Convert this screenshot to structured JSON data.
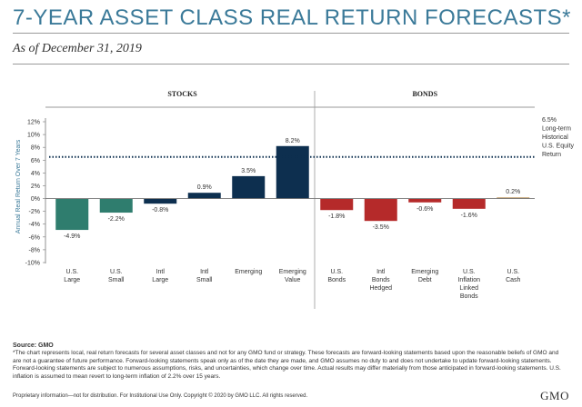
{
  "title": "7-YEAR ASSET CLASS REAL RETURN FORECASTS*",
  "subtitle": "As of December 31, 2019",
  "chart_data": {
    "type": "bar",
    "ylabel": "Annual Real Return Over 7 Years",
    "ylim": [
      -10,
      12
    ],
    "yticks": [
      "12%",
      "10%",
      "8%",
      "6%",
      "4%",
      "2%",
      "0%",
      "-2%",
      "-4%",
      "-6%",
      "-8%",
      "-10%"
    ],
    "grid": false,
    "groups": [
      {
        "label": "STOCKS",
        "color": "#0d2f4f",
        "categories": [
          {
            "label": "U.S.\nLarge",
            "value": -4.9,
            "value_label": "-4.9%",
            "color": "#2f7d6e"
          },
          {
            "label": "U.S.\nSmall",
            "value": -2.2,
            "value_label": "-2.2%",
            "color": "#2f7d6e"
          },
          {
            "label": "Intl\nLarge",
            "value": -0.8,
            "value_label": "-0.8%",
            "color": "#0d2f4f"
          },
          {
            "label": "Intl\nSmall",
            "value": 0.9,
            "value_label": "0.9%",
            "color": "#0d2f4f"
          },
          {
            "label": "Emerging",
            "value": 3.5,
            "value_label": "3.5%",
            "color": "#0d2f4f"
          },
          {
            "label": "Emerging\nValue",
            "value": 8.2,
            "value_label": "8.2%",
            "color": "#0d2f4f"
          }
        ]
      },
      {
        "label": "BONDS",
        "color": "#b52a2a",
        "categories": [
          {
            "label": "U.S.\nBonds",
            "value": -1.8,
            "value_label": "-1.8%",
            "color": "#b52a2a"
          },
          {
            "label": "Intl\nBonds\nHedged",
            "value": -3.5,
            "value_label": "-3.5%",
            "color": "#b52a2a"
          },
          {
            "label": "Emerging\nDebt",
            "value": -0.6,
            "value_label": "-0.6%",
            "color": "#b52a2a"
          },
          {
            "label": "U.S.\nInflation\nLinked\nBonds",
            "value": -1.6,
            "value_label": "-1.6%",
            "color": "#b52a2a"
          },
          {
            "label": "U.S.\nCash",
            "value": 0.2,
            "value_label": "0.2%",
            "color": "#c8a97a"
          }
        ]
      }
    ],
    "reference_line": {
      "value": 6.5,
      "label": [
        "6.5%",
        "Long-term",
        "Historical",
        "U.S. Equity",
        "Return"
      ],
      "style": "dotted",
      "color": "#0d2f4f"
    }
  },
  "source": "Source: GMO",
  "footnote": "*The chart represents local, real return forecasts for several asset classes and not for any GMO fund or strategy. These forecasts are forward-looking statements based upon the reasonable beliefs of GMO and are not a guarantee of future performance. Forward-looking statements speak only as of the date they are made, and GMO assumes no duty to and does not undertake to update forward-looking statements. Forward-looking statements are subject to numerous assumptions, risks, and uncertainties, which change over time. Actual results may differ materially from those anticipated in forward-looking statements. U.S. inflation is assumed to mean revert to long-term inflation of 2.2% over 15 years.",
  "footer": "Proprietary information—not for distribution. For Institutional Use Only. Copyright © 2020 by GMO LLC. All rights reserved.",
  "logo": "GMO"
}
